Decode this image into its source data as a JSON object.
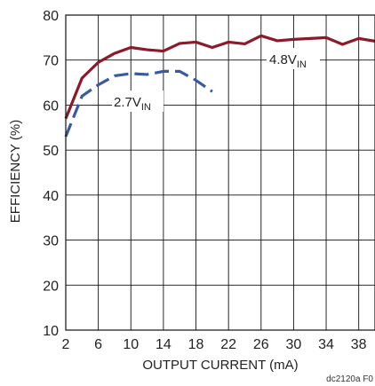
{
  "chart_data": {
    "type": "line",
    "xlabel": "OUTPUT CURRENT (mA)",
    "ylabel": "EFFICIENCY (%)",
    "xlim": [
      2,
      40
    ],
    "ylim": [
      10,
      80
    ],
    "x_ticks": [
      2,
      6,
      10,
      14,
      18,
      22,
      26,
      30,
      34,
      38
    ],
    "y_ticks": [
      10,
      20,
      30,
      40,
      50,
      60,
      70,
      80
    ],
    "grid": true,
    "series": [
      {
        "name_main": "4.8V",
        "name_sub": "IN",
        "color": "#8b1a2b",
        "dashed": false,
        "x": [
          2,
          4,
          6,
          8,
          10,
          12,
          14,
          16,
          18,
          20,
          22,
          24,
          26,
          28,
          30,
          32,
          34,
          36,
          38,
          40
        ],
        "y": [
          57,
          66,
          69.5,
          71.5,
          72.8,
          72.3,
          72,
          73.7,
          74,
          72.8,
          74,
          73.6,
          75.4,
          74.3,
          74.6,
          74.8,
          75,
          73.5,
          74.8,
          74.2
        ]
      },
      {
        "name_main": "2.7V",
        "name_sub": "IN",
        "color": "#3a5aa0",
        "dashed": true,
        "x": [
          2,
          4,
          6,
          8,
          10,
          12,
          14,
          16,
          18,
          20
        ],
        "y": [
          53,
          62,
          64.5,
          66.5,
          67,
          66.8,
          67.5,
          67.5,
          65.5,
          63
        ]
      }
    ],
    "annotation": "dc2120a F0"
  }
}
